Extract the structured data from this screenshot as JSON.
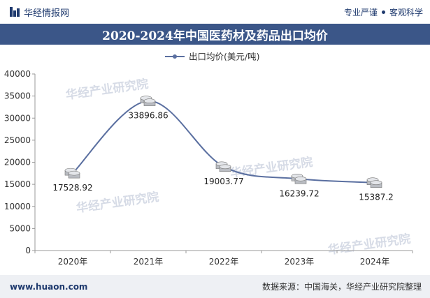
{
  "header": {
    "brand": "华经情报网",
    "tag1": "专业严谨",
    "tag2": "客观科学"
  },
  "title": "2020-2024年中国医药材及药品出口均价",
  "footer": {
    "site": "www.huaon.com",
    "source": "数据来源：中国海关，华经产业研究院整理"
  },
  "watermark": "华经产业研究院",
  "chart_data": {
    "type": "line",
    "categories": [
      "2020年",
      "2021年",
      "2022年",
      "2023年",
      "2024年"
    ],
    "series": [
      {
        "name": "出口均价(美元/吨)",
        "values": [
          17528.92,
          33896.86,
          19003.77,
          16239.72,
          15387.2
        ],
        "labels": [
          "17528.92",
          "33896.86",
          "19003.77",
          "16239.72",
          "15387.2"
        ],
        "color": "#5a6fa0"
      }
    ],
    "ylim": [
      0,
      40000
    ],
    "yticks": [
      0,
      5000,
      10000,
      15000,
      20000,
      25000,
      30000,
      35000,
      40000
    ],
    "legend": "top-center",
    "grid": false
  }
}
